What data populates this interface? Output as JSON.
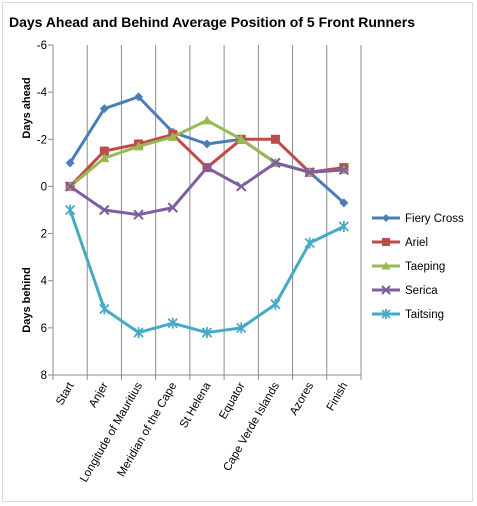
{
  "chart_data": {
    "type": "line",
    "title": "Days Ahead and Behind Average Position of 5 Front Runners",
    "ylabel_top": "Days ahead",
    "ylabel_bottom": "Days behind",
    "ylim": [
      -6,
      8
    ],
    "y_inverted": true,
    "yticks": [
      -6,
      -4,
      -2,
      0,
      2,
      4,
      6,
      8
    ],
    "ytick_labels": [
      "-6",
      "-4",
      "-2",
      "0",
      "2",
      "4",
      "6",
      "8"
    ],
    "grid": "vertical",
    "legend_position": "right",
    "categories": [
      "Start",
      "Anjer",
      "Longitude of Mauritius",
      "Meridian of the Cape",
      "St Helena",
      "Equator",
      "Cape Verde Islands",
      "Azores",
      "Finish"
    ],
    "series": [
      {
        "name": "Fiery Cross",
        "color": "#4a7ebb",
        "marker": "diamond",
        "values": [
          -1.0,
          -3.3,
          -3.8,
          -2.3,
          -1.8,
          -2.0,
          -1.0,
          -0.6,
          0.7
        ]
      },
      {
        "name": "Ariel",
        "color": "#be4b48",
        "marker": "square",
        "values": [
          0.0,
          -1.5,
          -1.8,
          -2.2,
          -0.8,
          -2.0,
          -2.0,
          -0.6,
          -0.8
        ]
      },
      {
        "name": "Taeping",
        "color": "#98b954",
        "marker": "triangle",
        "values": [
          0.0,
          -1.2,
          -1.7,
          -2.1,
          -2.8,
          -2.0,
          -1.0,
          -0.6,
          -0.7
        ]
      },
      {
        "name": "Serica",
        "color": "#7d5fa0",
        "marker": "x",
        "values": [
          0.0,
          1.0,
          1.2,
          0.9,
          -0.8,
          0.0,
          -1.0,
          -0.6,
          -0.7
        ]
      },
      {
        "name": "Taitsing",
        "color": "#46aac5",
        "marker": "star",
        "values": [
          1.0,
          5.2,
          6.2,
          5.8,
          6.2,
          6.0,
          5.0,
          2.4,
          1.7
        ]
      }
    ]
  }
}
